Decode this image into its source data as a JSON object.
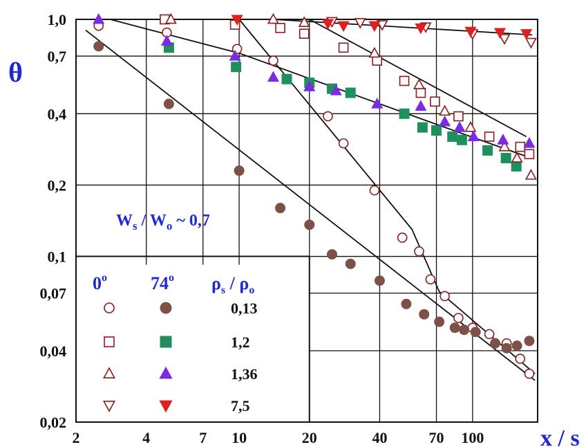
{
  "chart_data": {
    "type": "scatter",
    "title": "",
    "xlabel": "x / s",
    "ylabel": "θ",
    "x_scale": "log",
    "y_scale": "log",
    "xlim": [
      2,
      190
    ],
    "ylim": [
      0.02,
      1.0
    ],
    "grid": true,
    "x_ticks": [
      {
        "value": 2,
        "label": "2"
      },
      {
        "value": 4,
        "label": "4"
      },
      {
        "value": 7,
        "label": "7"
      },
      {
        "value": 10,
        "label": "10"
      },
      {
        "value": 20,
        "label": "20"
      },
      {
        "value": 40,
        "label": "40"
      },
      {
        "value": 70,
        "label": "70"
      },
      {
        "value": 100,
        "label": "100"
      }
    ],
    "y_ticks": [
      {
        "value": 0.02,
        "label": "0,02"
      },
      {
        "value": 0.04,
        "label": "0,04"
      },
      {
        "value": 0.07,
        "label": "0,07"
      },
      {
        "value": 0.1,
        "label": "0,1"
      },
      {
        "value": 0.2,
        "label": "0,2"
      },
      {
        "value": 0.4,
        "label": "0,4"
      },
      {
        "value": 0.7,
        "label": "0,7"
      },
      {
        "value": 1.0,
        "label": "1,0"
      }
    ],
    "annotation": {
      "w_s": "W",
      "s_sub": "s",
      "sep": " / ",
      "w_o": "W",
      "o_sub": "o",
      "approx": " ~ 0,7"
    },
    "legend": {
      "placement": "bottom-left",
      "col_open": "0",
      "col_filled": "74",
      "degree": "o",
      "col_param": {
        "rho": "ρ",
        "s_sub": "s",
        "sep": " / ",
        "o_sub": "o"
      },
      "rows": [
        {
          "value": "0,13",
          "marker": "circle",
          "color": "#8b1a1a",
          "fill": "#7d5148"
        },
        {
          "value": "1,2",
          "marker": "square",
          "color": "#8b1a1a",
          "fill": "#1f8f5e"
        },
        {
          "value": "1,36",
          "marker": "triangle-up",
          "color": "#8b1a1a",
          "fill": "#7b2be2"
        },
        {
          "value": "7,5",
          "marker": "triangle-down",
          "color": "#8b1a1a",
          "fill": "#e0201e"
        }
      ]
    },
    "series": [
      {
        "name": "0° / 0,13",
        "marker": "circle",
        "filled": false,
        "color": "#8b1a1a",
        "points": [
          [
            2.5,
            0.94
          ],
          [
            4.9,
            0.88
          ],
          [
            9.8,
            0.75
          ],
          [
            14,
            0.67
          ],
          [
            24,
            0.39
          ],
          [
            28,
            0.3
          ],
          [
            38,
            0.19
          ],
          [
            50,
            0.12
          ],
          [
            59,
            0.105
          ],
          [
            66,
            0.08
          ],
          [
            76,
            0.068
          ],
          [
            87,
            0.055
          ],
          [
            100,
            0.05
          ],
          [
            118,
            0.047
          ],
          [
            140,
            0.043
          ],
          [
            160,
            0.037
          ],
          [
            175,
            0.032
          ]
        ]
      },
      {
        "name": "74° / 0,13",
        "marker": "circle",
        "filled": true,
        "color": "#7d5148",
        "points": [
          [
            2.5,
            0.77
          ],
          [
            5.0,
            0.44
          ],
          [
            10,
            0.23
          ],
          [
            15,
            0.16
          ],
          [
            20,
            0.136
          ],
          [
            25,
            0.102
          ],
          [
            30,
            0.093
          ],
          [
            40,
            0.079
          ],
          [
            52,
            0.063
          ],
          [
            62,
            0.057
          ],
          [
            72,
            0.053
          ],
          [
            84,
            0.05
          ],
          [
            92,
            0.049
          ],
          [
            103,
            0.048
          ],
          [
            125,
            0.043
          ],
          [
            140,
            0.041
          ],
          [
            155,
            0.042
          ],
          [
            175,
            0.044
          ]
        ]
      },
      {
        "name": "0° / 1,2",
        "marker": "square",
        "filled": false,
        "color": "#8b1a1a",
        "points": [
          [
            4.8,
            1.0
          ],
          [
            9.6,
            0.95
          ],
          [
            15,
            0.92
          ],
          [
            19,
            0.87
          ],
          [
            28,
            0.76
          ],
          [
            39,
            0.67
          ],
          [
            51,
            0.55
          ],
          [
            60,
            0.49
          ],
          [
            69,
            0.45
          ],
          [
            87,
            0.39
          ],
          [
            118,
            0.32
          ],
          [
            160,
            0.29
          ],
          [
            175,
            0.27
          ]
        ]
      },
      {
        "name": "74° / 1,2",
        "marker": "square",
        "filled": true,
        "color": "#1f8f5e",
        "points": [
          [
            5.0,
            0.76
          ],
          [
            9.7,
            0.63
          ],
          [
            16,
            0.56
          ],
          [
            20,
            0.54
          ],
          [
            25,
            0.51
          ],
          [
            30,
            0.49
          ],
          [
            51,
            0.4
          ],
          [
            61,
            0.35
          ],
          [
            70,
            0.34
          ],
          [
            82,
            0.32
          ],
          [
            90,
            0.31
          ],
          [
            116,
            0.28
          ],
          [
            139,
            0.26
          ],
          [
            154,
            0.24
          ]
        ]
      },
      {
        "name": "0° / 1,36",
        "marker": "triangle-up",
        "filled": false,
        "color": "#8b1a1a",
        "points": [
          [
            5.1,
            1.0
          ],
          [
            14,
            1.0
          ],
          [
            19,
            0.97
          ],
          [
            38,
            0.72
          ],
          [
            59,
            0.53
          ],
          [
            76,
            0.41
          ],
          [
            98,
            0.35
          ],
          [
            137,
            0.29
          ],
          [
            155,
            0.26
          ],
          [
            178,
            0.22
          ]
        ]
      },
      {
        "name": "74° / 1,36",
        "marker": "triangle-up",
        "filled": true,
        "color": "#7b2be2",
        "points": [
          [
            2.5,
            1.0
          ],
          [
            4.9,
            0.81
          ],
          [
            9.6,
            0.7
          ],
          [
            14,
            0.57
          ],
          [
            20,
            0.52
          ],
          [
            26,
            0.5
          ],
          [
            39,
            0.44
          ],
          [
            60,
            0.43
          ],
          [
            76,
            0.37
          ],
          [
            88,
            0.35
          ],
          [
            101,
            0.32
          ],
          [
            135,
            0.31
          ],
          [
            175,
            0.3
          ]
        ]
      },
      {
        "name": "0° / 7,5",
        "marker": "triangle-down",
        "filled": false,
        "color": "#8b1a1a",
        "points": [
          [
            25,
            0.98
          ],
          [
            33,
            0.97
          ],
          [
            41,
            0.95
          ],
          [
            63,
            0.93
          ],
          [
            100,
            0.87
          ],
          [
            137,
            0.83
          ],
          [
            178,
            0.8
          ]
        ]
      },
      {
        "name": "74° / 7,5",
        "marker": "triangle-down",
        "filled": true,
        "color": "#e0201e",
        "points": [
          [
            9.8,
            1.0
          ],
          [
            24,
            0.96
          ],
          [
            28,
            0.94
          ],
          [
            38,
            0.94
          ],
          [
            60,
            0.92
          ],
          [
            98,
            0.89
          ],
          [
            131,
            0.88
          ],
          [
            170,
            0.87
          ]
        ]
      }
    ],
    "trend_lines": [
      {
        "points": [
          [
            2.2,
            0.9
          ],
          [
            185,
            0.03
          ]
        ]
      },
      {
        "points": [
          [
            10,
            1.0
          ],
          [
            55,
            0.13
          ],
          [
            72,
            0.071
          ],
          [
            185,
            0.032
          ]
        ]
      },
      {
        "points": [
          [
            2.8,
            1.0
          ],
          [
            10,
            0.72
          ],
          [
            90,
            0.33
          ],
          [
            178,
            0.26
          ]
        ]
      },
      {
        "points": [
          [
            20,
            1.0
          ],
          [
            170,
            0.32
          ]
        ]
      },
      {
        "points": [
          [
            14,
            1.0
          ],
          [
            180,
            0.86
          ]
        ]
      },
      {
        "points": [
          [
            75,
            0.095
          ],
          [
            74,
            0.0
          ],
          [
            0,
            0
          ]
        ]
      }
    ]
  }
}
